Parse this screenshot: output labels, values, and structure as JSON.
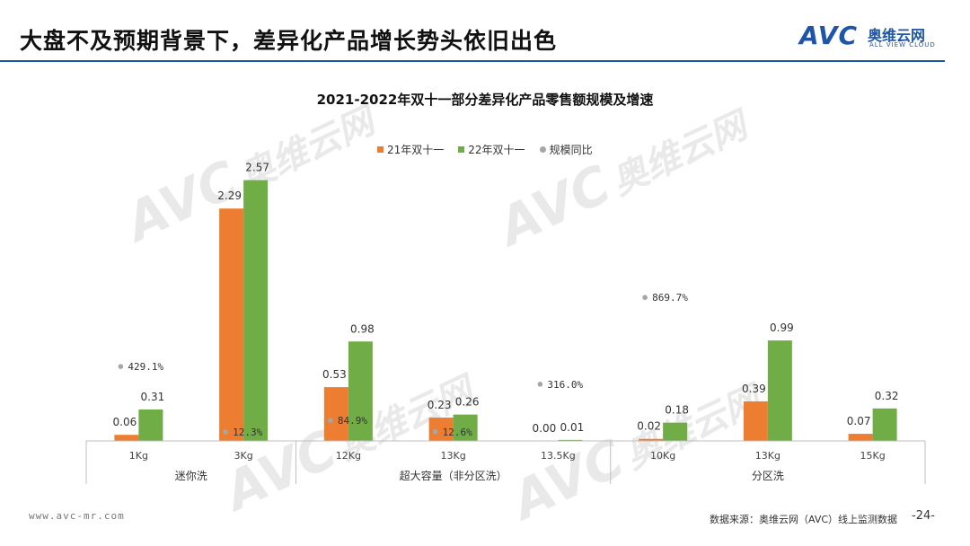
{
  "header": {
    "title": "大盘不及预期背景下，差异化产品增长势头依旧出色",
    "logo_text": "AVC",
    "logo_cn": "奥维云网",
    "logo_en": "ALL VIEW CLOUD"
  },
  "watermark": {
    "brand": "AVC",
    "cn": "奥维云网",
    "en": "ALL VIEW CLOUD"
  },
  "chart_data": {
    "type": "bar",
    "title": "2021-2022年双十一部分差异化产品零售额规模及增速",
    "categories": [
      "1Kg",
      "3Kg",
      "12Kg",
      "13Kg",
      "13.5Kg",
      "10Kg",
      "13Kg",
      "15Kg"
    ],
    "groups": [
      {
        "label": "迷你洗",
        "span": 2
      },
      {
        "label": "超大容量（非分区洗）",
        "span": 3
      },
      {
        "label": "分区洗",
        "span": 3
      }
    ],
    "series": [
      {
        "name": "21年双十一",
        "color": "#ed7d31",
        "values": [
          0.06,
          2.29,
          0.53,
          0.23,
          0.0,
          0.02,
          0.39,
          0.07
        ],
        "labels": [
          "0.06",
          "2.29",
          "0.53",
          "0.23",
          "0.00",
          "0.02",
          "0.39",
          "0.07"
        ]
      },
      {
        "name": "22年双十一",
        "color": "#70ad47",
        "values": [
          0.31,
          2.57,
          0.98,
          0.26,
          0.01,
          0.18,
          0.99,
          0.32
        ],
        "labels": [
          "0.31",
          "2.57",
          "0.98",
          "0.26",
          "0.01",
          "0.18",
          "0.99",
          "0.32"
        ]
      }
    ],
    "growth": {
      "name": "规模同比",
      "color": "#a6a6a6",
      "values": [
        429.1,
        12.3,
        84.9,
        12.6,
        316.0,
        869.7,
        null,
        null
      ],
      "labels": [
        "429.1%",
        "12.3%",
        "84.9%",
        "12.6%",
        "316.0%",
        "869.7%",
        "",
        ""
      ]
    },
    "legend_position": "top"
  },
  "footer": {
    "website": "www.avc-mr.com",
    "source": "数据来源：奥维云网（AVC）线上监测数据",
    "page": "-24-"
  }
}
